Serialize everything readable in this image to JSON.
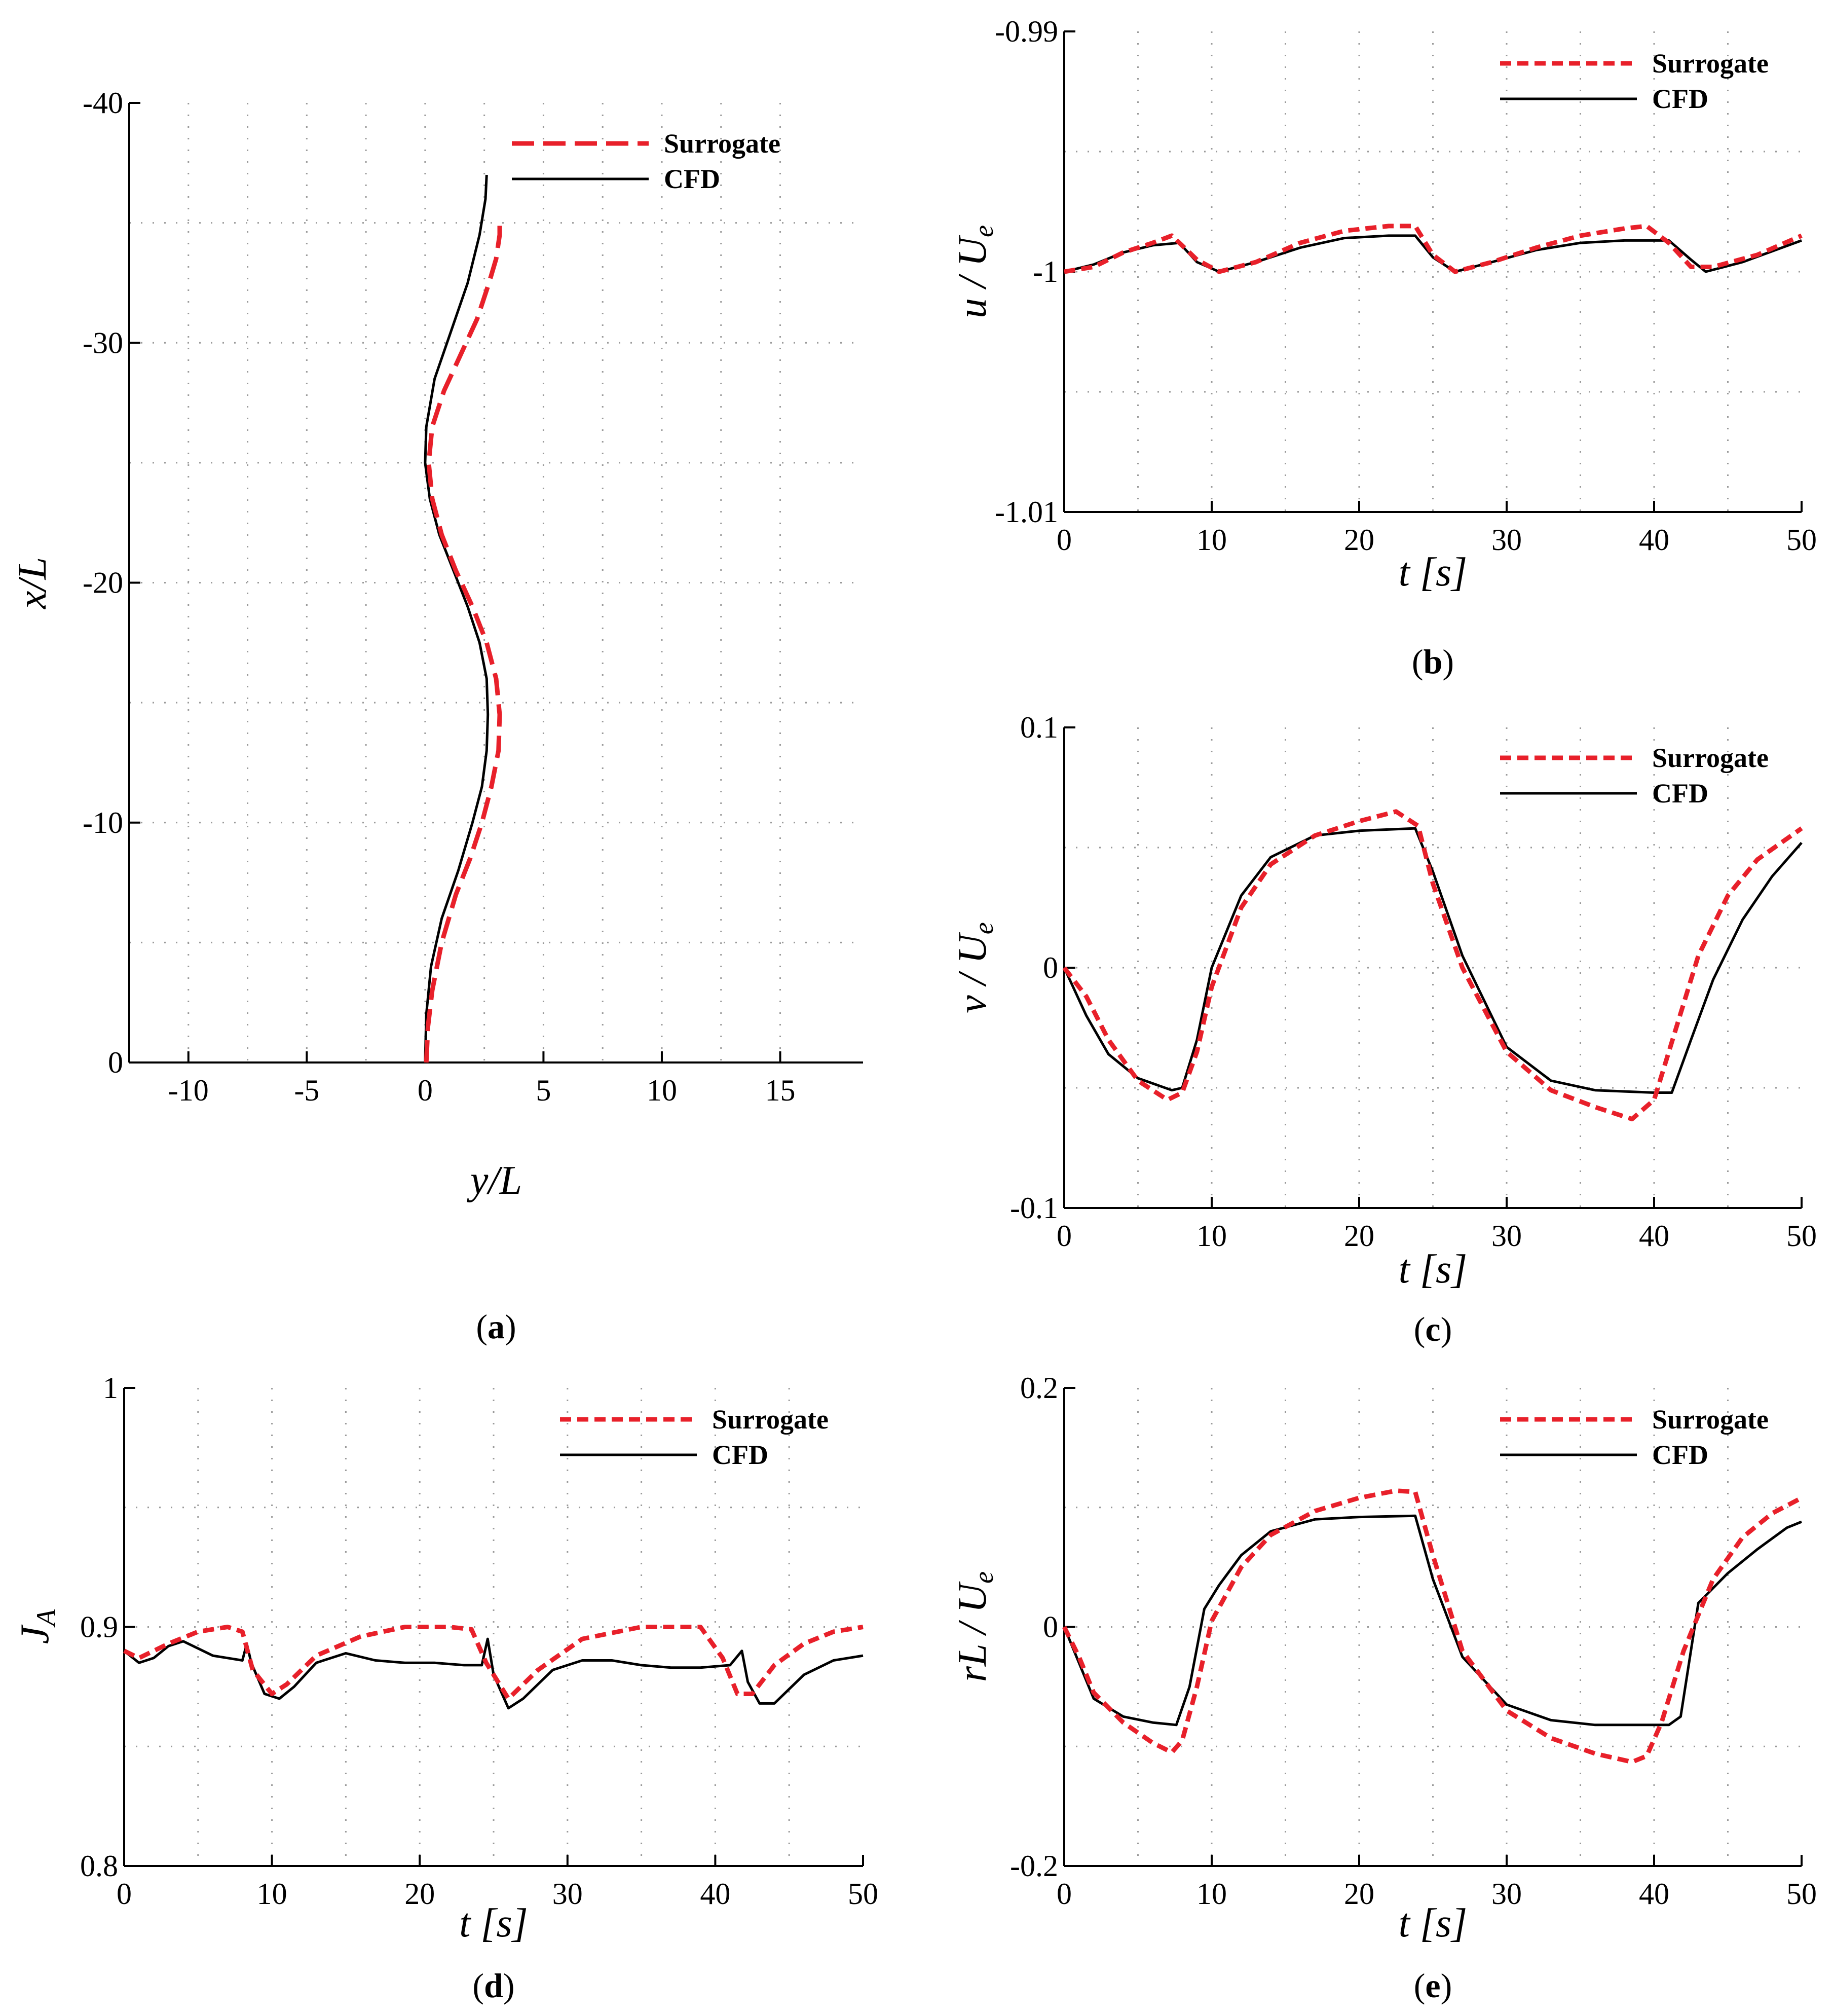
{
  "colors": {
    "surrogate": "#e8202a",
    "cfd": "#000000"
  },
  "chart_data": [
    {
      "id": "a",
      "type": "line",
      "panel_label": "a",
      "xlabel": "y/L",
      "ylabel": "x/L",
      "xlim": [
        -12.5,
        18.5
      ],
      "ylim": [
        0,
        -40
      ],
      "xticks": [
        -10,
        -5,
        0,
        5,
        10,
        15
      ],
      "yticks": [
        0,
        -10,
        -20,
        -30,
        -40
      ],
      "grid": true,
      "legend": {
        "position": "top-right",
        "entries": [
          "Surrogate",
          "CFD"
        ]
      },
      "series": [
        {
          "name": "Surrogate",
          "style": "dashed",
          "x": [
            0.05,
            0.12,
            0.3,
            0.7,
            1.3,
            1.9,
            2.4,
            2.8,
            3.1,
            3.15,
            3.0,
            2.6,
            2.0,
            1.3,
            0.7,
            0.3,
            0.15,
            0.3,
            0.8,
            1.5,
            2.2,
            2.7,
            3.0,
            3.15,
            3.15
          ],
          "y": [
            0,
            -1.5,
            -3,
            -5,
            -7,
            -8.5,
            -10,
            -11.5,
            -13,
            -14.5,
            -16,
            -17.5,
            -19,
            -20.5,
            -22,
            -23.5,
            -25,
            -26.5,
            -28,
            -29.5,
            -31,
            -32.5,
            -33.5,
            -34.5,
            -35
          ]
        },
        {
          "name": "CFD",
          "style": "solid",
          "x": [
            0.0,
            0.05,
            0.25,
            0.7,
            1.4,
            2.0,
            2.4,
            2.6,
            2.65,
            2.6,
            2.3,
            1.8,
            1.2,
            0.6,
            0.2,
            0.0,
            0.05,
            0.4,
            1.1,
            1.8,
            2.3,
            2.55,
            2.6
          ],
          "y": [
            0,
            -2,
            -4,
            -6,
            -8,
            -10,
            -11.5,
            -13,
            -14.5,
            -16,
            -17.5,
            -19,
            -20.5,
            -22,
            -23.5,
            -25,
            -26.5,
            -28.5,
            -30.5,
            -32.5,
            -34.5,
            -36,
            -37
          ]
        }
      ]
    },
    {
      "id": "b",
      "type": "line",
      "panel_label": "b",
      "xlabel": "t [s]",
      "ylabel": "u / U",
      "ylabel_sub": "e",
      "xlim": [
        0,
        50
      ],
      "ylim": [
        -1.01,
        -0.99
      ],
      "xticks": [
        0,
        10,
        20,
        30,
        40,
        50
      ],
      "yticks": [
        -1.01,
        -1,
        -0.99
      ],
      "ytick_labels": [
        "-1.01",
        "-1",
        "-0.99"
      ],
      "grid": true,
      "legend": {
        "position": "top-right",
        "entries": [
          "Surrogate",
          "CFD"
        ]
      },
      "series": [
        {
          "name": "Surrogate",
          "style": "dashed",
          "x": [
            0,
            2,
            4,
            6,
            7.3,
            9,
            10.5,
            13,
            16,
            19,
            22,
            23.8,
            25,
            26.5,
            29,
            32,
            35,
            38,
            39.5,
            41,
            42.5,
            44,
            47,
            50
          ],
          "y": [
            -1.0,
            -0.9998,
            -0.9992,
            -0.9988,
            -0.9985,
            -0.9995,
            -1.0,
            -0.9996,
            -0.9988,
            -0.9983,
            -0.9981,
            -0.9981,
            -0.9993,
            -1.0,
            -0.9996,
            -0.999,
            -0.9985,
            -0.9982,
            -0.9981,
            -0.9988,
            -0.9998,
            -0.9998,
            -0.9993,
            -0.9985
          ]
        },
        {
          "name": "CFD",
          "style": "solid",
          "x": [
            0,
            2,
            4,
            6,
            7.8,
            9,
            10.5,
            13,
            16,
            19,
            22,
            23.8,
            25,
            26.5,
            29,
            32,
            35,
            38,
            41,
            42.5,
            43.5,
            46,
            50
          ],
          "y": [
            -1.0,
            -0.9997,
            -0.9992,
            -0.9989,
            -0.9988,
            -0.9996,
            -1.0,
            -0.9996,
            -0.999,
            -0.9986,
            -0.9985,
            -0.9985,
            -0.9994,
            -1.0,
            -0.9996,
            -0.9991,
            -0.9988,
            -0.9987,
            -0.9987,
            -0.9995,
            -1.0,
            -0.9996,
            -0.9987
          ]
        }
      ]
    },
    {
      "id": "c",
      "type": "line",
      "panel_label": "c",
      "xlabel": "t [s]",
      "ylabel": "v / U",
      "ylabel_sub": "e",
      "xlim": [
        0,
        50
      ],
      "ylim": [
        -0.1,
        0.1
      ],
      "xticks": [
        0,
        10,
        20,
        30,
        40,
        50
      ],
      "yticks": [
        -0.1,
        0,
        0.1
      ],
      "ytick_labels": [
        "-0.1",
        "0",
        "0.1"
      ],
      "grid": true,
      "legend": {
        "position": "top-right",
        "entries": [
          "Surrogate",
          "CFD"
        ]
      },
      "series": [
        {
          "name": "Surrogate",
          "style": "dashed",
          "x": [
            0,
            1.5,
            3,
            5,
            7,
            8,
            9,
            10,
            12,
            14,
            17,
            20,
            22.5,
            24,
            25,
            27,
            30,
            33,
            36,
            38.5,
            40,
            41.5,
            43,
            45,
            47,
            50
          ],
          "y": [
            0.0,
            -0.012,
            -0.03,
            -0.047,
            -0.055,
            -0.052,
            -0.035,
            -0.008,
            0.025,
            0.043,
            0.055,
            0.061,
            0.065,
            0.059,
            0.035,
            0.0,
            -0.035,
            -0.051,
            -0.058,
            -0.063,
            -0.055,
            -0.025,
            0.005,
            0.03,
            0.045,
            0.058
          ]
        },
        {
          "name": "CFD",
          "style": "solid",
          "x": [
            0,
            1.5,
            3,
            5,
            7.3,
            8,
            9,
            10,
            12,
            14,
            17,
            20,
            23.8,
            25,
            27,
            30,
            33,
            36,
            40,
            41.2,
            42.5,
            44,
            46,
            48,
            50
          ],
          "y": [
            0.0,
            -0.02,
            -0.036,
            -0.046,
            -0.051,
            -0.05,
            -0.03,
            0.0,
            0.03,
            0.046,
            0.055,
            0.057,
            0.058,
            0.04,
            0.005,
            -0.033,
            -0.047,
            -0.051,
            -0.052,
            -0.052,
            -0.03,
            -0.005,
            0.02,
            0.038,
            0.052
          ]
        }
      ]
    },
    {
      "id": "d",
      "type": "line",
      "panel_label": "d",
      "xlabel": "t [s]",
      "ylabel": "J",
      "ylabel_sub": "A",
      "xlim": [
        0,
        50
      ],
      "ylim": [
        0.8,
        1.0
      ],
      "xticks": [
        0,
        10,
        20,
        30,
        40,
        50
      ],
      "yticks": [
        0.8,
        0.9,
        1.0
      ],
      "ytick_labels": [
        "0.8",
        "0.9",
        "1"
      ],
      "grid": true,
      "legend": {
        "position": "top-right",
        "entries": [
          "Surrogate",
          "CFD"
        ]
      },
      "series": [
        {
          "name": "Surrogate",
          "style": "dashed",
          "x": [
            0,
            1,
            3,
            5,
            7,
            8,
            8.7,
            10,
            11,
            13,
            16,
            19,
            22,
            23.5,
            24.5,
            26,
            28,
            31,
            35,
            39,
            40.5,
            41.5,
            42.5,
            44,
            46,
            48,
            50
          ],
          "y": [
            0.89,
            0.887,
            0.893,
            0.898,
            0.9,
            0.898,
            0.882,
            0.872,
            0.876,
            0.888,
            0.896,
            0.9,
            0.9,
            0.899,
            0.885,
            0.87,
            0.882,
            0.895,
            0.9,
            0.9,
            0.887,
            0.872,
            0.872,
            0.884,
            0.893,
            0.898,
            0.9
          ]
        },
        {
          "name": "CFD",
          "style": "solid",
          "x": [
            0,
            1,
            2,
            3,
            4,
            5,
            6,
            7,
            8,
            8.3,
            8.6,
            9.5,
            10.5,
            11.5,
            13,
            15,
            17,
            19,
            21,
            23,
            24.2,
            24.6,
            25,
            26,
            27,
            29,
            31,
            33,
            35,
            37,
            39,
            41,
            41.8,
            42.2,
            43,
            44,
            46,
            48,
            50
          ],
          "y": [
            0.89,
            0.885,
            0.887,
            0.892,
            0.894,
            0.891,
            0.888,
            0.887,
            0.886,
            0.893,
            0.885,
            0.872,
            0.87,
            0.875,
            0.885,
            0.889,
            0.886,
            0.885,
            0.885,
            0.884,
            0.884,
            0.895,
            0.88,
            0.866,
            0.87,
            0.882,
            0.886,
            0.886,
            0.884,
            0.883,
            0.883,
            0.884,
            0.89,
            0.877,
            0.868,
            0.868,
            0.88,
            0.886,
            0.888
          ]
        }
      ]
    },
    {
      "id": "e",
      "type": "line",
      "panel_label": "e",
      "xlabel": "t [s]",
      "ylabel": "rL / U",
      "ylabel_sub": "e",
      "xlim": [
        0,
        50
      ],
      "ylim": [
        -0.2,
        0.2
      ],
      "xticks": [
        0,
        10,
        20,
        30,
        40,
        50
      ],
      "yticks": [
        -0.2,
        0,
        0.2
      ],
      "ytick_labels": [
        "-0.2",
        "0",
        "0.2"
      ],
      "grid": true,
      "legend": {
        "position": "top-right",
        "entries": [
          "Surrogate",
          "CFD"
        ]
      },
      "series": [
        {
          "name": "Surrogate",
          "style": "dashed",
          "x": [
            0,
            1,
            2,
            4,
            6,
            7.3,
            8,
            9,
            10,
            12,
            14,
            17,
            20,
            22.5,
            23.8,
            25,
            27,
            30,
            33,
            36,
            38.5,
            39.5,
            40.5,
            42,
            44,
            46,
            48,
            50
          ],
          "y": [
            0.0,
            -0.025,
            -0.055,
            -0.08,
            -0.097,
            -0.105,
            -0.095,
            -0.05,
            0.005,
            0.05,
            0.077,
            0.097,
            0.108,
            0.114,
            0.113,
            0.06,
            -0.02,
            -0.07,
            -0.093,
            -0.106,
            -0.113,
            -0.108,
            -0.08,
            -0.02,
            0.04,
            0.075,
            0.095,
            0.108
          ]
        },
        {
          "name": "CFD",
          "style": "solid",
          "x": [
            0,
            1,
            2,
            4,
            6,
            7.6,
            8.5,
            9.5,
            10.5,
            12,
            14,
            17,
            20,
            23.8,
            25,
            27,
            30,
            33,
            36,
            39,
            41,
            41.8,
            43,
            45,
            47,
            49,
            50
          ],
          "y": [
            0.0,
            -0.03,
            -0.06,
            -0.075,
            -0.08,
            -0.082,
            -0.05,
            0.015,
            0.035,
            0.06,
            0.08,
            0.09,
            0.092,
            0.093,
            0.04,
            -0.025,
            -0.065,
            -0.078,
            -0.082,
            -0.082,
            -0.082,
            -0.075,
            0.02,
            0.045,
            0.065,
            0.083,
            0.088
          ]
        }
      ]
    }
  ]
}
